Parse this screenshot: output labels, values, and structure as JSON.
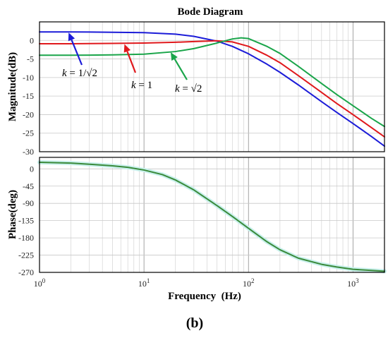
{
  "figure": {
    "title": "Bode Diagram",
    "caption": "(b)",
    "xlabel": "Frequency  (Hz)"
  },
  "chart_data": [
    {
      "type": "line",
      "panel": "magnitude",
      "title": "Bode Diagram",
      "ylabel": "Magnitude(dB)",
      "xlabel": "",
      "xscale": "log",
      "xlim": [
        1,
        2000
      ],
      "ylim": [
        -30,
        5
      ],
      "yticks": [
        0,
        -5,
        -10,
        -15,
        -20,
        -25,
        -30
      ],
      "grid": true,
      "series": [
        {
          "name": "k = 1/√2",
          "color": "#1c1cd8",
          "x": [
            1,
            2,
            5,
            10,
            20,
            30,
            50,
            70,
            100,
            150,
            200,
            300,
            500,
            700,
            1000,
            1500,
            2000
          ],
          "y": [
            2.3,
            2.3,
            2.2,
            2.1,
            1.7,
            1.1,
            -0.2,
            -1.6,
            -3.6,
            -6.4,
            -8.6,
            -12.0,
            -16.5,
            -19.4,
            -22.4,
            -25.9,
            -28.5
          ]
        },
        {
          "name": "k = 1",
          "color": "#e0181c",
          "x": [
            1,
            2,
            5,
            10,
            20,
            30,
            50,
            70,
            100,
            150,
            200,
            300,
            500,
            700,
            1000,
            1500,
            2000
          ],
          "y": [
            -0.9,
            -0.9,
            -0.8,
            -0.7,
            -0.5,
            -0.3,
            -0.1,
            -0.4,
            -1.6,
            -4.0,
            -6.0,
            -9.5,
            -14.0,
            -17.0,
            -20.0,
            -23.5,
            -26.0
          ]
        },
        {
          "name": "k = √2",
          "color": "#1aa54a",
          "x": [
            1,
            2,
            5,
            10,
            20,
            30,
            50,
            70,
            85,
            100,
            150,
            200,
            300,
            500,
            700,
            1000,
            1500,
            2000
          ],
          "y": [
            -4.0,
            -4.0,
            -3.9,
            -3.7,
            -3.0,
            -2.2,
            -0.7,
            0.4,
            0.7,
            0.5,
            -1.6,
            -3.5,
            -7.0,
            -11.6,
            -14.6,
            -17.6,
            -21.0,
            -23.2
          ]
        }
      ],
      "annotations": [
        {
          "text": "k = 1/√2",
          "target_x": 1.9,
          "target_y": 2.1,
          "color": "#1c1cd8"
        },
        {
          "text": "k = 1",
          "target_x": 6.5,
          "target_y": -1.0,
          "color": "#e0181c"
        },
        {
          "text": "k = √2",
          "target_x": 18,
          "target_y": -3.2,
          "color": "#1aa54a"
        }
      ]
    },
    {
      "type": "line",
      "panel": "phase",
      "ylabel": "Phase(deg)",
      "xlabel": "Frequency  (Hz)",
      "xscale": "log",
      "xlim": [
        1,
        2000
      ],
      "ylim": [
        -270,
        30
      ],
      "yticks": [
        0,
        -45,
        -90,
        -135,
        -180,
        -225,
        -270
      ],
      "xticks": [
        1,
        10,
        100,
        1000
      ],
      "xtick_labels": [
        "10^0",
        "10^1",
        "10^2",
        "10^3"
      ],
      "grid": true,
      "series": [
        {
          "color": "#3a8a3a",
          "x": [
            1,
            2,
            3,
            5,
            7,
            10,
            15,
            20,
            30,
            50,
            70,
            100,
            150,
            200,
            300,
            500,
            700,
            1000,
            1500,
            2000
          ],
          "y": [
            17,
            15,
            12,
            8,
            4,
            -3,
            -15,
            -29,
            -55,
            -96,
            -124,
            -155,
            -190,
            -211,
            -233,
            -249,
            -256,
            -262,
            -265,
            -267
          ]
        }
      ]
    }
  ]
}
